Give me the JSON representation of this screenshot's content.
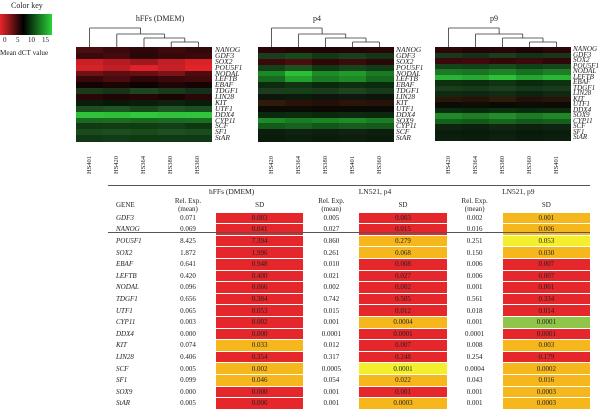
{
  "color_key": {
    "title": "Color key",
    "ticks": [
      "0",
      "5",
      "10",
      "15"
    ],
    "label": "Mean dCT value",
    "colors": [
      "#e8252b",
      "#000000",
      "#2bd33a"
    ]
  },
  "heatmaps": [
    {
      "title": "hFFs (DMEM)",
      "genes": [
        "NANOG",
        "GDF3",
        "SOX2",
        "POU5F1",
        "NODAL",
        "LEFTB",
        "EBAF",
        "TDGF1",
        "LIN28",
        "KIT",
        "UTF1",
        "DDX4",
        "CYP11",
        "SCF",
        "SF1",
        "StAR"
      ],
      "samples": [
        "HS401",
        "HS420",
        "HS364",
        "HS380",
        "HS360"
      ],
      "cells": [
        [
          "#4a0d10",
          "#3c0a0c",
          "#2e0709",
          "#3e0a0c",
          "#330809"
        ],
        [
          "#3a090b",
          "#420b0e",
          "#2a0608",
          "#36080a",
          "#3a090b"
        ],
        [
          "#cc2027",
          "#b81c22",
          "#9e181d",
          "#c21e25",
          "#d72228"
        ],
        [
          "#d32228",
          "#c01e24",
          "#dd2329",
          "#c81f26",
          "#e0242a"
        ],
        [
          "#6e1216",
          "#5a0e12",
          "#680f13",
          "#7a1418",
          "#4e0c0f"
        ],
        [
          "#3a080a",
          "#4b0c0f",
          "#2f0709",
          "#3b090b",
          "#410a0d"
        ],
        [
          "#140303",
          "#1b0404",
          "#100202",
          "#1f0505",
          "#160303"
        ],
        [
          "#1a3a18",
          "#17331a",
          "#1e4420",
          "#193a1b",
          "#15301a"
        ],
        [
          "#2a0608",
          "#200505",
          "#250506",
          "#1a0404",
          "#2b0607"
        ],
        [
          "#0c1c0d",
          "#081809",
          "#0b1e0c",
          "#0e220f",
          "#0a1c0b"
        ],
        [
          "#1a501e",
          "#1c5521",
          "#16481a",
          "#1d5622",
          "#185020"
        ],
        [
          "#2fc33b",
          "#2cc037",
          "#32c83c",
          "#2fc23a",
          "#30c53c"
        ],
        [
          "#1c6a22",
          "#1e6c23",
          "#18661f",
          "#1a6a21",
          "#1c6c22"
        ],
        [
          "#0f3a12",
          "#113d14",
          "#0f3c13",
          "#123f15",
          "#0d3911"
        ],
        [
          "#1a4a1d",
          "#1c4e1f",
          "#184a1c",
          "#1d4f20",
          "#1a4c1e"
        ],
        [
          "#103813",
          "#123c15",
          "#0e3a12",
          "#113a14",
          "#0f3913"
        ]
      ]
    },
    {
      "title": "p4",
      "genes": [
        "NANOG",
        "GDF3",
        "SOX2",
        "POU5F1",
        "NODAL",
        "LEFTB",
        "EBAF",
        "TDGF1",
        "LIN28",
        "KIT",
        "UTF1",
        "DDX4",
        "SOX9",
        "CYP11",
        "SCF",
        "StAR"
      ],
      "samples": [
        "HS420",
        "HS364",
        "HS380",
        "HS401",
        "HS360"
      ],
      "cells": [
        [
          "#2a0608",
          "#240506",
          "#1e0405",
          "#220505",
          "#280607"
        ],
        [
          "#1b3d1d",
          "#164a19",
          "#123814",
          "#1a3f1c",
          "#143416"
        ],
        [
          "#3a090b",
          "#4a0c0f",
          "#300709",
          "#3c0a0c",
          "#2c0708"
        ],
        [
          "#14401a",
          "#1c5220",
          "#103814",
          "#174419",
          "#123c15"
        ],
        [
          "#1a8a24",
          "#2bbf37",
          "#1d8c25",
          "#229a2b",
          "#1a7c22"
        ],
        [
          "#176a1f",
          "#22a02c",
          "#1a7a22",
          "#1e8a26",
          "#166a1e"
        ],
        [
          "#0b2a0e",
          "#103412",
          "#0a280c",
          "#0e2e10",
          "#092a0c"
        ],
        [
          "#1d3c1f",
          "#17401a",
          "#1a3a1b",
          "#20421f",
          "#183a1a"
        ],
        [
          "#0c160c",
          "#0a1a0b",
          "#0c140c",
          "#0e180d",
          "#0b150b"
        ],
        [
          "#301a0a",
          "#2a1208",
          "#241008",
          "#2c1409",
          "#281209"
        ],
        [
          "#0b0a04",
          "#0a0c05",
          "#0c0804",
          "#090a05",
          "#0b0905"
        ],
        [
          "#0a2a0d",
          "#0c2e0f",
          "#0a280c",
          "#0d2c0f",
          "#0b2a0d"
        ],
        [
          "#1e8a28",
          "#1a7c23",
          "#1d8426",
          "#208c29",
          "#1b7e24"
        ],
        [
          "#145a1b",
          "#186220",
          "#125619",
          "#175e1e",
          "#145a1b"
        ],
        [
          "#0c1e0d",
          "#0e220f",
          "#0c200d",
          "#0f2410",
          "#0d200e"
        ],
        [
          "#0a1a0b",
          "#0c1e0d",
          "#0a1c0b",
          "#0d1e0e",
          "#0b1c0c"
        ]
      ]
    },
    {
      "title": "p9",
      "genes": [
        "NANOG",
        "GDF3",
        "SOX2",
        "POU5F1",
        "NODAL",
        "LEFTB",
        "EBAF",
        "TDGF1",
        "LIN28",
        "KIT",
        "UTF1",
        "DDX4",
        "SOX9",
        "CYP11",
        "SCF",
        "SF1",
        "StAR"
      ],
      "samples": [
        "HS420",
        "HS364",
        "HS380",
        "HS360",
        "HS401"
      ],
      "cells": [
        [
          "#2e0709",
          "#240506",
          "#280607",
          "#1e0405",
          "#2a0608"
        ],
        [
          "#1a381b",
          "#163017",
          "#1c3c1e",
          "#143216",
          "#19361b"
        ],
        [
          "#3a090b",
          "#420a0d",
          "#330809",
          "#3c0a0c",
          "#2e0708"
        ],
        [
          "#15441a",
          "#124018",
          "#184a1d",
          "#104016",
          "#17461b"
        ],
        [
          "#1c7a24",
          "#1a7422",
          "#208227",
          "#167020",
          "#1e7e25"
        ],
        [
          "#2ab336",
          "#26a832",
          "#2fc03a",
          "#24a530",
          "#2bb536"
        ],
        [
          "#0d3010",
          "#0b2c0e",
          "#0f3412",
          "#0a2a0d",
          "#0e3211"
        ],
        [
          "#1a3e1c",
          "#163a18",
          "#1c401e",
          "#14381a",
          "#183c1b"
        ],
        [
          "#102a11",
          "#0e2610",
          "#122c13",
          "#0c240e",
          "#102811"
        ],
        [
          "#2c1609",
          "#281208",
          "#301a0a",
          "#241008",
          "#2a1409"
        ],
        [
          "#0a0d06",
          "#0c0f06",
          "#090b05",
          "#0b0e06",
          "#0a0c05"
        ],
        [
          "#0c2c0f",
          "#0a280c",
          "#0e2e10",
          "#0a2a0d",
          "#0d2c0f"
        ],
        [
          "#1f8a28",
          "#1b7e24",
          "#228e2a",
          "#1a7c23",
          "#1e8827"
        ],
        [
          "#16601e",
          "#125a19",
          "#186420",
          "#14581b",
          "#175e1e"
        ],
        [
          "#0e2410",
          "#0c200e",
          "#10260f",
          "#0c220d",
          "#0e2410"
        ],
        [
          "#0b1c0c",
          "#0a1a0b",
          "#0c1e0d",
          "#091a0b",
          "#0b1c0c"
        ],
        [
          "#0c1e0d",
          "#0a1c0b",
          "#0e200e",
          "#0a1c0c",
          "#0c1e0d"
        ]
      ]
    }
  ],
  "table": {
    "groups": [
      "hFFs (DMEM)",
      "LN521, p4",
      "LN521, p9"
    ],
    "gene_header": "GENE",
    "rel_header_1": "Rel. Exp.",
    "rel_header_2": "(mean)",
    "sd_header": "SD",
    "colors": {
      "red": "#e5262b",
      "orange": "#f6b71d",
      "yellow": "#f3ef2c",
      "green": "#8fc64a"
    },
    "rows": [
      {
        "gene": "GDF3",
        "c": [
          [
            "0.071",
            "0.083",
            "red"
          ],
          [
            "0.005",
            "0.003",
            "red"
          ],
          [
            "0.002",
            "0.001",
            "orange"
          ]
        ]
      },
      {
        "gene": "NANOG",
        "c": [
          [
            "0.069",
            "0.041",
            "red"
          ],
          [
            "0.027",
            "0.015",
            "red"
          ],
          [
            "0.016",
            "0.006",
            "orange"
          ]
        ]
      },
      {
        "gene": "POU5F1",
        "c": [
          [
            "8.425",
            "7.394",
            "red"
          ],
          [
            "0.860",
            "0.279",
            "orange"
          ],
          [
            "0.251",
            "0.053",
            "yellow"
          ]
        ]
      },
      {
        "gene": "SOX2",
        "c": [
          [
            "1.872",
            "1.996",
            "red"
          ],
          [
            "0.261",
            "0.068",
            "orange"
          ],
          [
            "0.150",
            "0.030",
            "orange"
          ]
        ]
      },
      {
        "gene": "EBAF",
        "c": [
          [
            "0.641",
            "0.948",
            "red"
          ],
          [
            "0.010",
            "0.008",
            "red"
          ],
          [
            "0.006",
            "0.007",
            "red"
          ]
        ]
      },
      {
        "gene": "LEFTB",
        "c": [
          [
            "0.420",
            "0.400",
            "red"
          ],
          [
            "0.021",
            "0.027",
            "red"
          ],
          [
            "0.006",
            "0.007",
            "red"
          ]
        ]
      },
      {
        "gene": "NODAL",
        "c": [
          [
            "0.096",
            "0.066",
            "red"
          ],
          [
            "0.002",
            "0.002",
            "red"
          ],
          [
            "0.001",
            "0.001",
            "red"
          ]
        ]
      },
      {
        "gene": "TDGF1",
        "c": [
          [
            "0.656",
            "0.384",
            "red"
          ],
          [
            "0.742",
            "0.505",
            "red"
          ],
          [
            "0.561",
            "0.334",
            "red"
          ]
        ]
      },
      {
        "gene": "UTF1",
        "c": [
          [
            "0.065",
            "0.053",
            "red"
          ],
          [
            "0.015",
            "0.012",
            "red"
          ],
          [
            "0.018",
            "0.014",
            "red"
          ]
        ]
      },
      {
        "gene": "CYP11",
        "c": [
          [
            "0.003",
            "0.002",
            "red"
          ],
          [
            "0.001",
            "0.0004",
            "orange"
          ],
          [
            "0.001",
            "0.0001",
            "green"
          ]
        ]
      },
      {
        "gene": "DDX4",
        "c": [
          [
            "0.000",
            "0.000",
            "red"
          ],
          [
            "0.0001",
            "0.0001",
            "red"
          ],
          [
            "0.0001",
            "0.0001",
            "red"
          ]
        ]
      },
      {
        "gene": "KIT",
        "c": [
          [
            "0.074",
            "0.033",
            "orange"
          ],
          [
            "0.012",
            "0.007",
            "red"
          ],
          [
            "0.008",
            "0.003",
            "orange"
          ]
        ]
      },
      {
        "gene": "LIN28",
        "c": [
          [
            "0.406",
            "0.354",
            "red"
          ],
          [
            "0.317",
            "0.248",
            "red"
          ],
          [
            "0.254",
            "0.179",
            "red"
          ]
        ]
      },
      {
        "gene": "SCF",
        "c": [
          [
            "0.005",
            "0.002",
            "orange"
          ],
          [
            "0.0005",
            "0.0001",
            "yellow"
          ],
          [
            "0.0004",
            "0.0002",
            "orange"
          ]
        ]
      },
      {
        "gene": "SF1",
        "c": [
          [
            "0.099",
            "0.046",
            "orange"
          ],
          [
            "0.054",
            "0.022",
            "orange"
          ],
          [
            "0.043",
            "0.016",
            "orange"
          ]
        ]
      },
      {
        "gene": "SOX9",
        "c": [
          [
            "0.000",
            "0.000",
            "red"
          ],
          [
            "0.001",
            "0.001",
            "red"
          ],
          [
            "0.001",
            "0.0003",
            "orange"
          ]
        ]
      },
      {
        "gene": "StAR",
        "c": [
          [
            "0.005",
            "0.006",
            "red"
          ],
          [
            "0.001",
            "0.0003",
            "orange"
          ],
          [
            "0.001",
            "0.0003",
            "orange"
          ]
        ]
      }
    ]
  }
}
